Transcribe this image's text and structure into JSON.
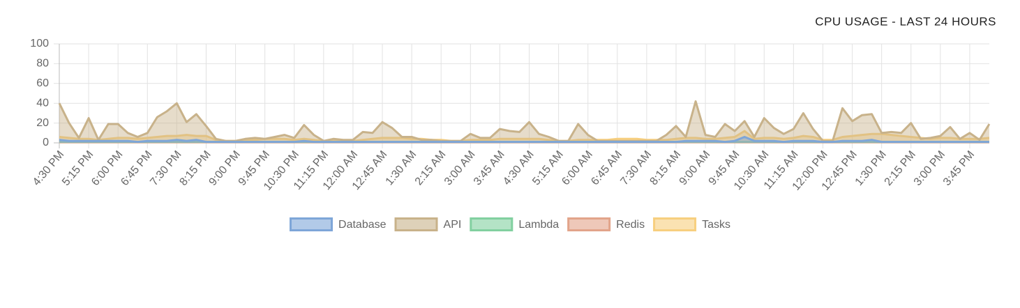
{
  "chart_data": {
    "type": "line",
    "title": "CPU USAGE - LAST 24 HOURS",
    "categories": [
      "4:30 PM",
      null,
      null,
      "5:15 PM",
      null,
      null,
      "6:00 PM",
      null,
      null,
      "6:45 PM",
      null,
      null,
      "7:30 PM",
      null,
      null,
      "8:15 PM",
      null,
      null,
      "9:00 PM",
      null,
      null,
      "9:45 PM",
      null,
      null,
      "10:30 PM",
      null,
      null,
      "11:15 PM",
      null,
      null,
      "12:00 AM",
      null,
      null,
      "12:45 AM",
      null,
      null,
      "1:30 AM",
      null,
      null,
      "2:15 AM",
      null,
      null,
      "3:00 AM",
      null,
      null,
      "3:45 AM",
      null,
      null,
      "4:30 AM",
      null,
      null,
      "5:15 AM",
      null,
      null,
      "6:00 AM",
      null,
      null,
      "6:45 AM",
      null,
      null,
      "7:30 AM",
      null,
      null,
      "8:15 AM",
      null,
      null,
      "9:00 AM",
      null,
      null,
      "9:45 AM",
      null,
      null,
      "10:30 AM",
      null,
      null,
      "11:15 AM",
      null,
      null,
      "12:00 PM",
      null,
      null,
      "12:45 PM",
      null,
      null,
      "1:30 PM",
      null,
      null,
      "2:15 PM",
      null,
      null,
      "3:00 PM",
      null,
      null,
      "3:45 PM",
      null,
      null
    ],
    "series": [
      {
        "name": "Database",
        "color": "#7ea6d8",
        "values": [
          3,
          2,
          2,
          2,
          2,
          2,
          2,
          2,
          1,
          2,
          2,
          2,
          3,
          2,
          3,
          1,
          1,
          1,
          1,
          1,
          1,
          1,
          1,
          1,
          1,
          2,
          1,
          1,
          1,
          1,
          1,
          1,
          1,
          1,
          1,
          1,
          1,
          1,
          1,
          1,
          1,
          1,
          1,
          1,
          1,
          1,
          1,
          1,
          1,
          1,
          1,
          1,
          1,
          1,
          1,
          1,
          1,
          1,
          1,
          1,
          1,
          1,
          1,
          1,
          2,
          2,
          2,
          2,
          1,
          2,
          6,
          2,
          2,
          2,
          1,
          2,
          2,
          2,
          1,
          1,
          2,
          2,
          2,
          3,
          1,
          1,
          1,
          1,
          1,
          1,
          1,
          1,
          1,
          1,
          1,
          1
        ]
      },
      {
        "name": "API",
        "color": "#c8b28a",
        "values": [
          40,
          20,
          5,
          25,
          3,
          19,
          19,
          10,
          6,
          10,
          26,
          32,
          40,
          21,
          29,
          17,
          4,
          2,
          2,
          4,
          5,
          4,
          6,
          8,
          5,
          18,
          8,
          2,
          4,
          3,
          3,
          11,
          10,
          21,
          15,
          6,
          6,
          3,
          3,
          2,
          2,
          2,
          9,
          5,
          5,
          14,
          12,
          11,
          21,
          9,
          6,
          2,
          2,
          19,
          8,
          2,
          2,
          2,
          2,
          2,
          2,
          2,
          8,
          17,
          6,
          42,
          8,
          6,
          19,
          12,
          22,
          6,
          25,
          15,
          9,
          14,
          30,
          14,
          2,
          2,
          35,
          22,
          28,
          29,
          10,
          11,
          10,
          20,
          4,
          5,
          7,
          16,
          4,
          10,
          3,
          19
        ]
      },
      {
        "name": "Lambda",
        "color": "#82d0a0",
        "values": [
          1,
          1,
          1,
          1,
          1,
          1,
          1,
          1,
          1,
          1,
          1,
          1,
          1,
          1,
          1,
          1,
          1,
          1,
          1,
          1,
          1,
          1,
          1,
          1,
          1,
          1,
          1,
          1,
          1,
          1,
          1,
          1,
          1,
          1,
          1,
          1,
          1,
          1,
          1,
          1,
          1,
          1,
          1,
          1,
          1,
          1,
          1,
          1,
          1,
          1,
          1,
          1,
          1,
          1,
          1,
          1,
          1,
          1,
          1,
          1,
          1,
          1,
          1,
          1,
          1,
          1,
          1,
          1,
          1,
          1,
          1,
          1,
          1,
          1,
          1,
          1,
          1,
          1,
          1,
          1,
          1,
          1,
          1,
          1,
          1,
          1,
          1,
          1,
          1,
          1,
          1,
          1,
          1,
          1,
          1,
          1
        ]
      },
      {
        "name": "Redis",
        "color": "#e2a48a",
        "values": [
          0.5,
          0.5,
          0.5,
          0.5,
          0.5,
          0.5,
          0.5,
          0.5,
          0.5,
          0.5,
          0.5,
          0.5,
          0.5,
          0.5,
          0.5,
          0.5,
          0.5,
          0.5,
          0.5,
          0.5,
          0.5,
          0.5,
          0.5,
          0.5,
          0.5,
          0.5,
          0.5,
          0.5,
          0.5,
          0.5,
          0.5,
          0.5,
          0.5,
          0.5,
          0.5,
          0.5,
          0.5,
          0.5,
          0.5,
          0.5,
          0.5,
          0.5,
          0.5,
          0.5,
          0.5,
          0.5,
          0.5,
          0.5,
          0.5,
          0.5,
          0.5,
          0.5,
          0.5,
          0.5,
          0.5,
          0.5,
          0.5,
          0.5,
          0.5,
          0.5,
          0.5,
          0.5,
          0.5,
          0.5,
          0.5,
          0.5,
          0.5,
          0.5,
          0.5,
          0.5,
          0.5,
          0.5,
          0.5,
          0.5,
          0.5,
          0.5,
          0.5,
          0.5,
          0.5,
          0.5,
          0.5,
          0.5,
          0.5,
          0.5,
          0.5,
          0.5,
          0.5,
          0.5,
          0.5,
          0.5,
          0.5,
          0.5,
          0.5,
          0.5,
          0.5,
          0.5
        ]
      },
      {
        "name": "Tasks",
        "color": "#f7cf7f",
        "values": [
          6,
          5,
          4,
          4,
          3,
          4,
          5,
          5,
          4,
          5,
          6,
          7,
          7,
          8,
          7,
          7,
          3,
          2,
          2,
          3,
          3,
          4,
          4,
          4,
          3,
          4,
          3,
          2,
          2,
          2,
          2,
          3,
          4,
          5,
          5,
          5,
          4,
          4,
          3,
          3,
          2,
          2,
          3,
          3,
          3,
          4,
          4,
          4,
          4,
          4,
          3,
          2,
          2,
          3,
          3,
          3,
          3,
          4,
          4,
          4,
          3,
          3,
          3,
          4,
          5,
          5,
          4,
          4,
          5,
          6,
          12,
          4,
          5,
          5,
          4,
          5,
          7,
          6,
          3,
          3,
          6,
          7,
          8,
          9,
          9,
          8,
          7,
          6,
          5,
          4,
          5,
          5,
          4,
          4,
          4,
          5
        ]
      }
    ],
    "ylim": [
      0,
      100
    ],
    "yticks": [
      0,
      20,
      40,
      60,
      80,
      100
    ],
    "grid": true,
    "legend": "bottom"
  }
}
